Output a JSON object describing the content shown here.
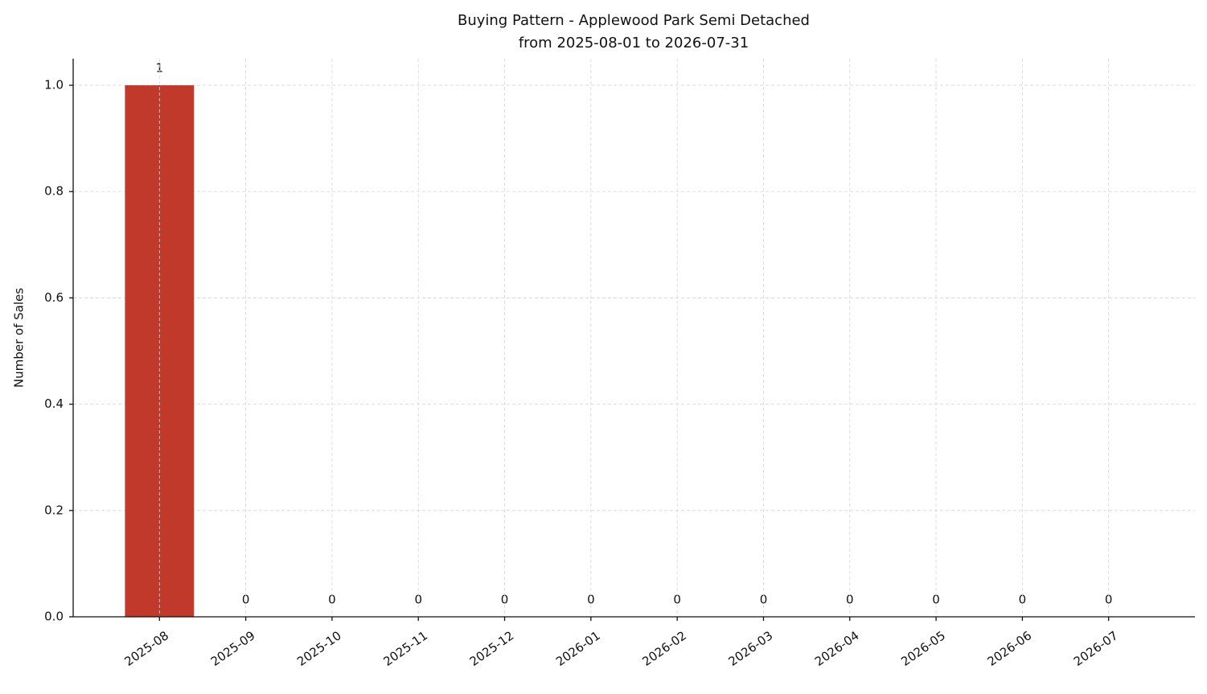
{
  "chart_data": {
    "type": "bar",
    "title": "Buying Pattern - Applewood Park Semi Detached",
    "subtitle": "from 2025-08-01 to 2026-07-31",
    "y_label": "Number of Sales",
    "categories": [
      "2025-08",
      "2025-09",
      "2025-10",
      "2025-11",
      "2025-12",
      "2026-01",
      "2026-02",
      "2026-03",
      "2026-04",
      "2026-05",
      "2026-06",
      "2026-07"
    ],
    "values": [
      1,
      0,
      0,
      0,
      0,
      0,
      0,
      0,
      0,
      0,
      0,
      0
    ],
    "color": "#c0392b",
    "ylim": [
      0,
      1.05
    ],
    "yticks": [
      {
        "value": 0,
        "label": "0.0"
      },
      0.2,
      0.4,
      0.6,
      0.8,
      {
        "value": 1,
        "label": "1.0"
      }
    ],
    "grid": true
  }
}
